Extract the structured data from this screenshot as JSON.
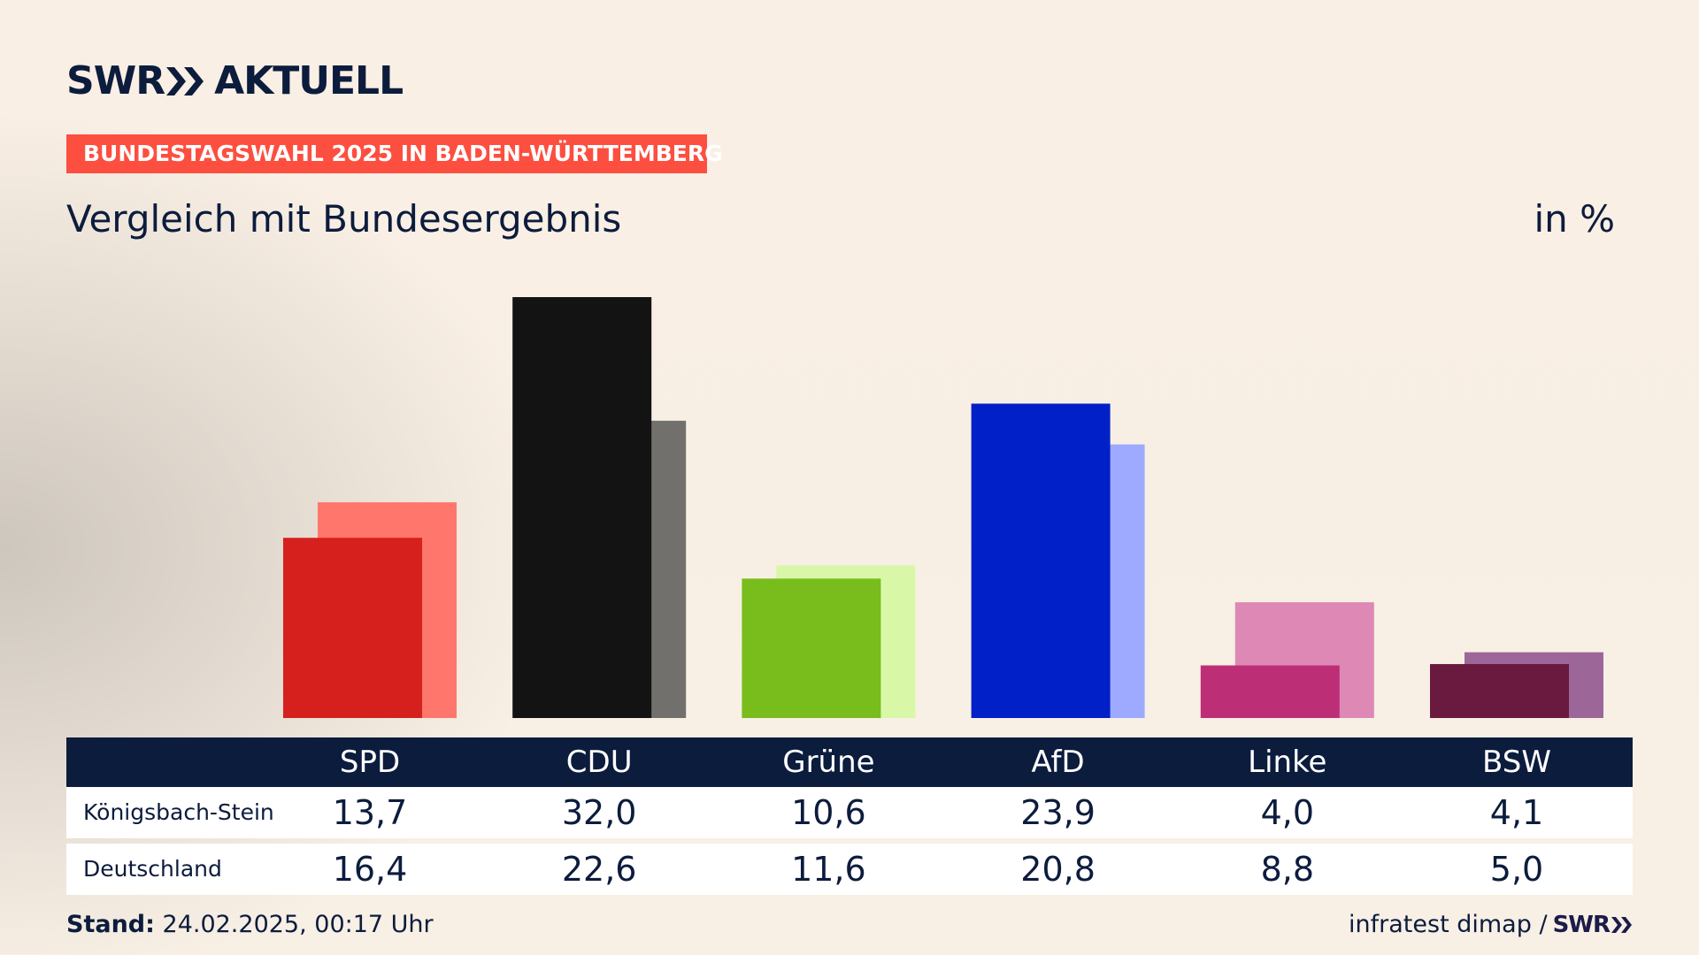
{
  "brand": {
    "logo_left": "SWR",
    "logo_right": "AKTUELL",
    "mini_logo": "SWR",
    "accent_color": "#fc4f40",
    "navy_color": "#0c1c3d"
  },
  "banner": "BUNDESTAGSWAHL 2025 IN BADEN-WÜRTTEMBERG",
  "subtitle": "Vergleich mit Bundesergebnis",
  "unit": "in %",
  "table": {
    "row_labels": [
      "Königsbach-Stein",
      "Deutschland"
    ]
  },
  "footer": {
    "stand_label": "Stand:",
    "stand_value": "24.02.2025, 00:17 Uhr",
    "source": "infratest dimap /"
  },
  "chart_data": {
    "type": "bar",
    "title": "Vergleich mit Bundesergebnis",
    "ylabel": "in %",
    "categories": [
      "SPD",
      "CDU",
      "Grüne",
      "AfD",
      "Linke",
      "BSW"
    ],
    "series": [
      {
        "name": "Königsbach-Stein",
        "values": [
          13.7,
          32.0,
          10.6,
          23.9,
          4.0,
          4.1
        ],
        "labels": [
          "13,7",
          "32,0",
          "10,6",
          "23,9",
          "4,0",
          "4,1"
        ],
        "colors": [
          "#d6201e",
          "#131313",
          "#78bd1c",
          "#0220c8",
          "#bc2f76",
          "#6b1a3f"
        ]
      },
      {
        "name": "Deutschland",
        "values": [
          16.4,
          22.6,
          11.6,
          20.8,
          8.8,
          5.0
        ],
        "labels": [
          "16,4",
          "22,6",
          "11,6",
          "20,8",
          "8,8",
          "5,0"
        ],
        "colors": [
          "#ff766c",
          "#72706d",
          "#d8f8a8",
          "#9eaaff",
          "#de88b6",
          "#9c6699"
        ]
      }
    ],
    "ylim": [
      0,
      32.0
    ],
    "grid": false,
    "legend": "none"
  }
}
